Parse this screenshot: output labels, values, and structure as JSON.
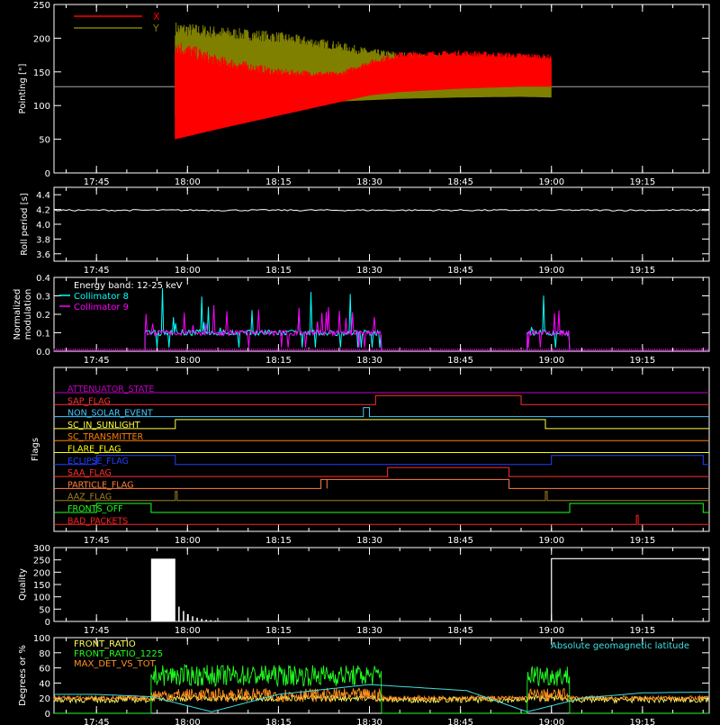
{
  "chart_data": [
    {
      "id": "pointing",
      "type": "line",
      "ylabel": "Pointing [\"]",
      "ylim": [
        0,
        250
      ],
      "yticks": [
        "0",
        "50",
        "100",
        "150",
        "200",
        "250"
      ],
      "xlim_minutes": [
        0,
        100
      ],
      "xticks": [
        "17:45",
        "18:00",
        "18:15",
        "18:30",
        "18:45",
        "19:00",
        "19:15"
      ],
      "legend": [
        "X",
        "Y"
      ],
      "colors": {
        "X": "#ff0000",
        "Y": "#808000",
        "ref": "#a8a8a8"
      },
      "reference_y": 128,
      "active_range": [
        "17:58",
        "19:00"
      ],
      "series": [
        {
          "name": "X",
          "envelope": {
            "t": [
              "17:58",
              "18:05",
              "18:15",
              "18:25",
              "18:30",
              "18:35",
              "18:45",
              "18:55",
              "19:00"
            ],
            "low": [
              50,
              65,
              85,
              105,
              115,
              120,
              125,
              128,
              128
            ],
            "high": [
              200,
              175,
              155,
              150,
              168,
              180,
              182,
              178,
              176
            ]
          }
        },
        {
          "name": "Y",
          "envelope": {
            "t": [
              "17:58",
              "18:05",
              "18:15",
              "18:25",
              "18:30",
              "18:35",
              "18:45",
              "18:55",
              "19:00"
            ],
            "low": [
              85,
              92,
              100,
              106,
              108,
              110,
              112,
              113,
              112
            ],
            "high": [
              225,
              218,
              210,
              195,
              185,
              180,
              175,
              170,
              168
            ]
          }
        }
      ]
    },
    {
      "id": "roll",
      "type": "line",
      "ylabel": "Roll period [s]",
      "ylim": [
        3.5,
        4.5
      ],
      "yticks": [
        "3.6",
        "3.8",
        "4.0",
        "4.2",
        "4.4"
      ],
      "xticks": [
        "17:45",
        "18:00",
        "18:15",
        "18:30",
        "18:45",
        "19:00",
        "19:15"
      ],
      "series": [
        {
          "name": "roll period",
          "value": 4.19
        }
      ]
    },
    {
      "id": "modulation",
      "type": "line",
      "ylabel": "Normalized modulation",
      "ylim": [
        0,
        0.4
      ],
      "yticks": [
        "0.0",
        "0.1",
        "0.2",
        "0.3",
        "0.4"
      ],
      "xticks": [
        "17:45",
        "18:00",
        "18:15",
        "18:30",
        "18:45",
        "19:00",
        "19:15"
      ],
      "legend": [
        "Energy band: 12-25 keV",
        "Collimator 8",
        "Collimator 9"
      ],
      "colors": {
        "Collimator 8": "#00ffff",
        "Collimator 9": "#ff00ff",
        "baseline": "#ff00ff"
      },
      "series": [
        {
          "name": "Collimator 8",
          "intervals": [
            [
              "17:53",
              "18:32"
            ],
            [
              "18:56",
              "19:03"
            ]
          ],
          "base": 0.1,
          "peak": 0.35
        },
        {
          "name": "Collimator 9",
          "intervals": [
            [
              "17:53",
              "18:32"
            ],
            [
              "18:56",
              "19:03"
            ]
          ],
          "base": 0.1,
          "peak": 0.25
        }
      ]
    },
    {
      "id": "flags",
      "type": "line",
      "ylabel": "Flags",
      "xticks": [
        "17:45",
        "18:00",
        "18:15",
        "18:30",
        "18:45",
        "19:00",
        "19:15"
      ],
      "flags": [
        {
          "name": "ATTENUATOR_STATE",
          "color": "#c000c0",
          "on": []
        },
        {
          "name": "SAP_FLAG",
          "color": "#ff3030",
          "on": [
            [
              "18:31",
              "18:55"
            ]
          ]
        },
        {
          "name": "NON_SOLAR_EVENT",
          "color": "#40c8ff",
          "on": [
            [
              "18:29",
              "18:30"
            ]
          ]
        },
        {
          "name": "SC_IN_SUNLIGHT",
          "color": "#ffff40",
          "on": [
            [
              "17:58",
              "18:59"
            ]
          ]
        },
        {
          "name": "SC_TRANSMITTER",
          "color": "#ff8000",
          "on": []
        },
        {
          "name": "FLARE_FLAG",
          "color": "#ffff00",
          "on": []
        },
        {
          "name": "ECLIPSE_FLAG",
          "color": "#2040ff",
          "on": [
            [
              "17:45",
              "17:58"
            ],
            [
              "19:00",
              "19:25"
            ]
          ]
        },
        {
          "name": "SAA_FLAG",
          "color": "#ff3030",
          "on": [
            [
              "18:33",
              "18:53"
            ]
          ]
        },
        {
          "name": "PARTICLE_FLAG",
          "color": "#ff8040",
          "on": [
            [
              "18:22",
              "18:23"
            ],
            [
              "18:23",
              "18:53"
            ]
          ]
        },
        {
          "name": "AAZ_FLAG",
          "color": "#a08020",
          "on": [
            [
              "17:58",
              "17:58"
            ],
            [
              "18:59",
              "18:59"
            ]
          ]
        },
        {
          "name": "FRONTS_OFF",
          "color": "#20ff20",
          "on": [
            [
              "17:45",
              "17:54"
            ],
            [
              "19:03",
              "19:25"
            ]
          ]
        },
        {
          "name": "BAD_PACKETS",
          "color": "#ff2020",
          "on": [
            [
              "19:14",
              "19:14"
            ]
          ]
        }
      ]
    },
    {
      "id": "quality",
      "type": "bar",
      "ylabel": "Quality",
      "ylim": [
        0,
        300
      ],
      "yticks": [
        "0",
        "50",
        "100",
        "150",
        "200",
        "250",
        "300"
      ],
      "xticks": [
        "17:45",
        "18:00",
        "18:15",
        "18:30",
        "18:45",
        "19:00",
        "19:15"
      ],
      "series": [
        {
          "name": "quality",
          "segments": [
            [
              "17:54",
              "17:58",
              255
            ],
            [
              "19:00",
              "19:25",
              255
            ]
          ]
        }
      ]
    },
    {
      "id": "front_ratio",
      "type": "line",
      "ylabel": "Degrees or %",
      "ylim": [
        0,
        100
      ],
      "yticks": [
        "0",
        "20",
        "40",
        "60",
        "80",
        "100"
      ],
      "xticks": [
        "17:45",
        "18:00",
        "18:15",
        "18:30",
        "18:45",
        "19:00",
        "19:15"
      ],
      "legend": [
        "FRONT_RATIO",
        "FRONT_RATIO_1225",
        "MAX_DET_VS_TOT",
        "Absolute geomagnetic latitude"
      ],
      "colors": {
        "FRONT_RATIO": "#ffff60",
        "FRONT_RATIO_1225": "#20ff20",
        "MAX_DET_VS_TOT": "#ff9020",
        "Absolute geomagnetic latitude": "#40e0e0"
      },
      "series": [
        {
          "name": "FRONT_RATIO",
          "base": 20
        },
        {
          "name": "FRONT_RATIO_1225",
          "intervals": [
            [
              "17:54",
              "18:32"
            ],
            [
              "18:56",
              "19:03"
            ]
          ],
          "level": 50
        },
        {
          "name": "MAX_DET_VS_TOT",
          "level": 22
        },
        {
          "name": "Absolute geomagnetic latitude",
          "points": {
            "t": [
              "17:45",
              "17:54",
              "18:04",
              "18:15",
              "18:30",
              "18:46",
              "18:56",
              "19:05",
              "19:15",
              "19:25"
            ],
            "v": [
              25,
              22,
              2,
              25,
              38,
              30,
              2,
              20,
              27,
              28
            ]
          }
        }
      ]
    }
  ]
}
